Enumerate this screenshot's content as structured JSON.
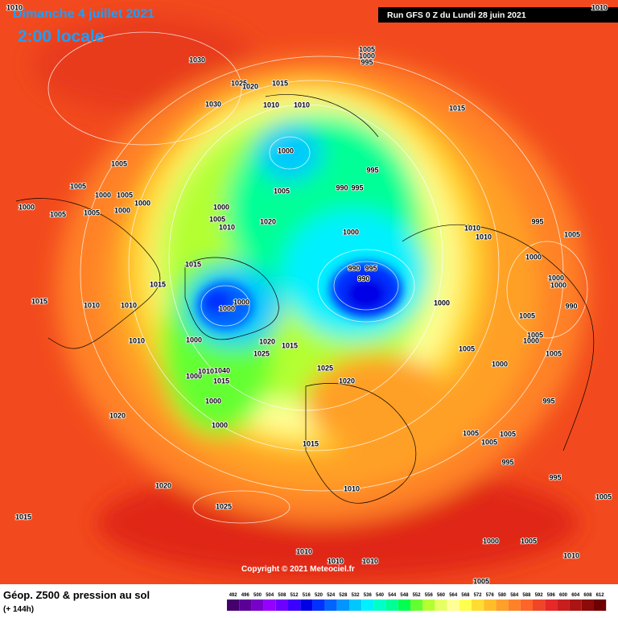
{
  "header": {
    "date": "Dimanche 4 juillet 2021",
    "time": "2:00 locale",
    "run": "Run GFS 0 Z du Lundi 28 juin 2021"
  },
  "copyright": "Copyright © 2021 Meteociel.fr",
  "footer": {
    "title": "Géop. Z500 & pression au sol",
    "lead": "(+ 144h)"
  },
  "scale": {
    "values": [
      492,
      496,
      500,
      504,
      508,
      512,
      516,
      520,
      524,
      528,
      532,
      536,
      540,
      544,
      548,
      552,
      556,
      560,
      564,
      568,
      572,
      576,
      580,
      584,
      588,
      592,
      596,
      600,
      604,
      608,
      612
    ],
    "colors": [
      "#46006e",
      "#5a0096",
      "#7800c8",
      "#9600ff",
      "#6e00ff",
      "#3c00ff",
      "#0000e6",
      "#0032ff",
      "#0064ff",
      "#0096ff",
      "#00c8ff",
      "#00f0ff",
      "#00ffc8",
      "#00ff96",
      "#00ff50",
      "#64ff32",
      "#b4ff32",
      "#e6ff64",
      "#ffff96",
      "#ffff50",
      "#ffdc32",
      "#ffbe28",
      "#ffa028",
      "#ff8228",
      "#ff6428",
      "#f04628",
      "#e62828",
      "#c81e1e",
      "#aa1414",
      "#8c0a0a",
      "#6e0000"
    ]
  },
  "isobar_labels": [
    1010,
    1010,
    1030,
    1005,
    1000,
    995,
    1025,
    1020,
    1015,
    1010,
    1010,
    1030,
    1015,
    1000,
    995,
    1005,
    1005,
    1005,
    990,
    995,
    1000,
    1005,
    1000,
    1000,
    1005,
    1005,
    1000,
    1000,
    1000,
    1005,
    1010,
    1020,
    1010,
    1010,
    995,
    1005,
    1000,
    990,
    995,
    990,
    1000,
    1000,
    990,
    1015,
    1015,
    1015,
    1010,
    1010,
    1000,
    1000,
    1000,
    1005,
    1005,
    1010,
    1000,
    1020,
    1015,
    1025,
    1005,
    1000,
    1005,
    1000,
    1025,
    1020,
    1000,
    1010,
    1040,
    1015,
    995,
    1000,
    1020,
    1000,
    1005,
    1005,
    1005,
    1015,
    995,
    995,
    1020,
    1010,
    1025,
    1005,
    1015,
    1000,
    1005,
    1010,
    1010,
    1010,
    1010,
    1005
  ]
}
